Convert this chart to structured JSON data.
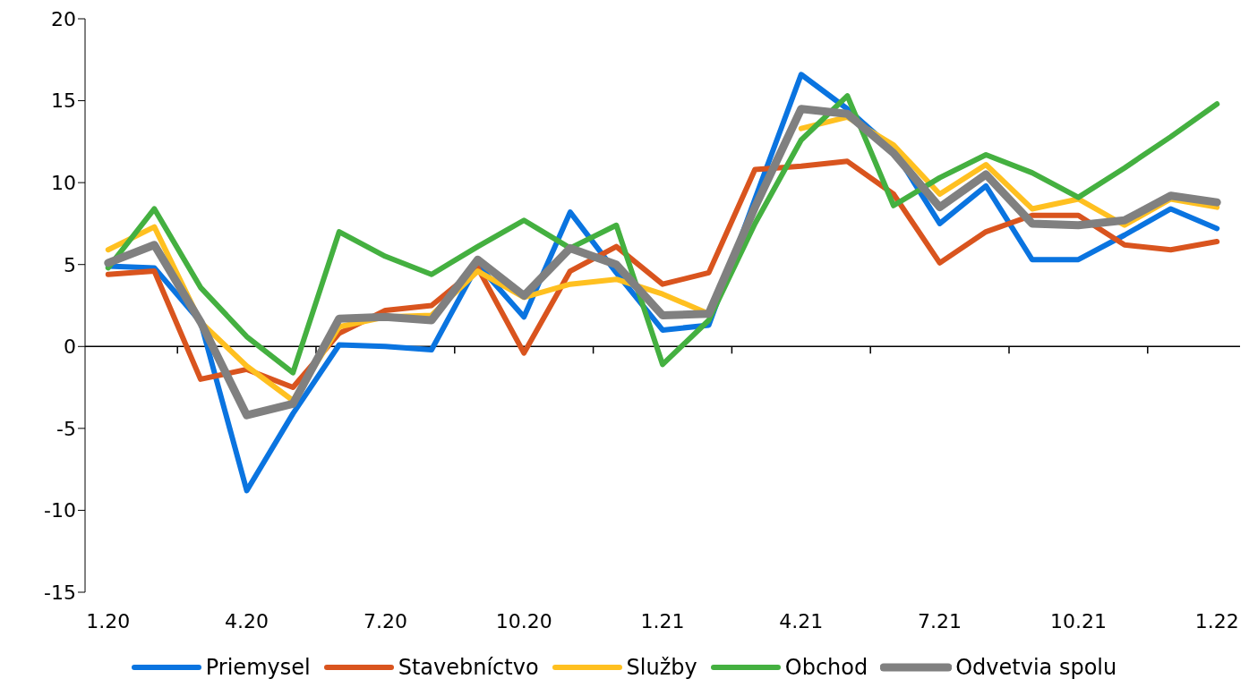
{
  "chart_data": {
    "type": "line",
    "categories": [
      "1.20",
      null,
      null,
      "4.20",
      null,
      null,
      "7.20",
      null,
      null,
      "10.20",
      null,
      null,
      "1.21",
      null,
      null,
      "4.21",
      null,
      null,
      "7.21",
      null,
      null,
      "10.21",
      null,
      null,
      "1.22"
    ],
    "series": [
      {
        "name": "Priemysel",
        "color": "#0a74e0",
        "values": [
          4.9,
          4.8,
          1.5,
          -8.8,
          -4.1,
          0.1,
          0,
          -0.2,
          5.0,
          1.8,
          8.2,
          4.5,
          1.0,
          1.3,
          9.0,
          16.6,
          14.5,
          12.0,
          7.5,
          9.8,
          5.3,
          5.3,
          6.8,
          8.4,
          7.2
        ]
      },
      {
        "name": "Stavebníctvo",
        "color": "#d9541e",
        "values": [
          4.4,
          4.6,
          -2.0,
          -1.4,
          -2.5,
          0.8,
          2.2,
          2.5,
          4.8,
          -0.4,
          4.6,
          6.1,
          3.8,
          4.5,
          10.8,
          11.0,
          11.3,
          9.3,
          5.1,
          7.0,
          8.0,
          8.0,
          6.2,
          5.9,
          6.4
        ]
      },
      {
        "name": "Služby",
        "color": "#ffc020",
        "values": [
          5.9,
          7.3,
          1.5,
          -1.2,
          -3.3,
          1.2,
          1.8,
          1.9,
          4.6,
          3.0,
          3.8,
          4.1,
          3.2,
          2.0,
          null,
          13.3,
          14.0,
          12.3,
          9.3,
          11.1,
          8.4,
          9.0,
          7.4,
          9.0,
          8.5
        ]
      },
      {
        "name": "Obchod",
        "color": "#44b040",
        "values": [
          4.8,
          8.4,
          3.6,
          0.6,
          -1.6,
          7.0,
          5.5,
          4.4,
          6.1,
          7.7,
          6.0,
          7.4,
          -1.1,
          1.6,
          7.5,
          12.6,
          15.3,
          8.6,
          10.3,
          11.7,
          10.6,
          9.1,
          10.9,
          12.8,
          14.8
        ]
      },
      {
        "name": "Odvetvia spolu",
        "color": "#808080",
        "values": [
          5.1,
          6.2,
          1.5,
          -4.2,
          -3.5,
          1.7,
          1.8,
          1.6,
          5.3,
          3.1,
          6.0,
          5.0,
          1.9,
          2.0,
          8.5,
          14.5,
          14.2,
          11.8,
          8.5,
          10.5,
          7.5,
          7.4,
          7.7,
          9.2,
          8.8
        ]
      }
    ],
    "ylim": [
      -15,
      20
    ],
    "yticks": [
      -15,
      -10,
      -5,
      0,
      5,
      10,
      15,
      20
    ],
    "ref_lines": [
      {
        "axis": "y",
        "value": 0,
        "color": "#000000"
      }
    ],
    "grid": false,
    "legend": "bottom",
    "marker": "none",
    "line_style": "solid"
  }
}
